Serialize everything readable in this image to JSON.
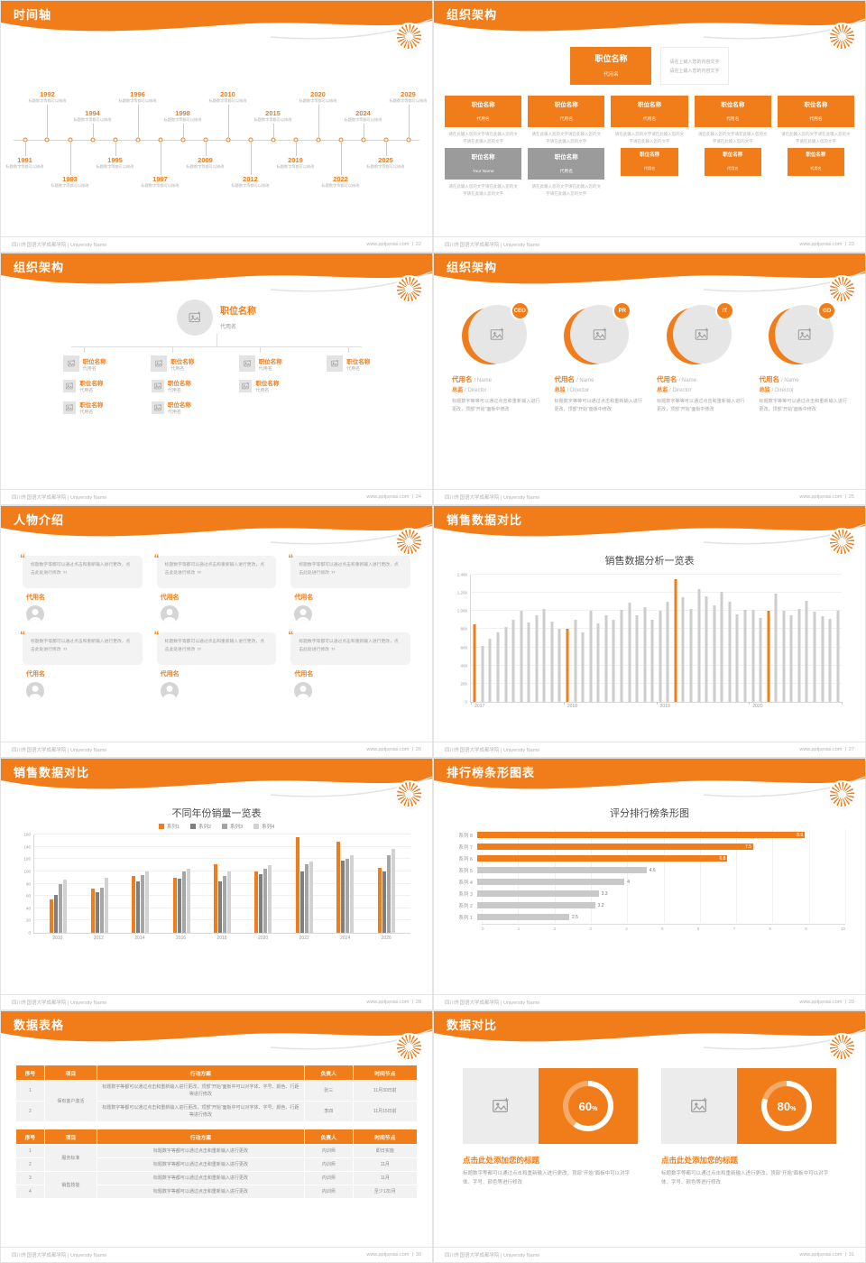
{
  "theme": {
    "orange": "#F07D1A",
    "gray_box": "#9B9B9B",
    "bar_gray": "#CDCDCD",
    "text_gray": "#999999"
  },
  "footer": {
    "left": "四川外国语大学成都学院 | University Name",
    "site": "www.pptjunias.com",
    "sep": "|"
  },
  "slides": {
    "s22": {
      "title": "时间轴",
      "page": "22",
      "item_desc": "标题数字等都可以修改",
      "items": [
        {
          "year": "1991",
          "dir": "down",
          "level": 1
        },
        {
          "year": "1992",
          "dir": "up",
          "level": 2
        },
        {
          "year": "1993",
          "dir": "down",
          "level": 2
        },
        {
          "year": "1994",
          "dir": "up",
          "level": 1
        },
        {
          "year": "1995",
          "dir": "down",
          "level": 1
        },
        {
          "year": "1996",
          "dir": "up",
          "level": 2
        },
        {
          "year": "1997",
          "dir": "down",
          "level": 2
        },
        {
          "year": "1998",
          "dir": "up",
          "level": 1
        },
        {
          "year": "2009",
          "dir": "down",
          "level": 1
        },
        {
          "year": "2010",
          "dir": "up",
          "level": 2
        },
        {
          "year": "2012",
          "dir": "down",
          "level": 2
        },
        {
          "year": "2015",
          "dir": "up",
          "level": 1
        },
        {
          "year": "2019",
          "dir": "down",
          "level": 1
        },
        {
          "year": "2020",
          "dir": "up",
          "level": 2
        },
        {
          "year": "2022",
          "dir": "down",
          "level": 2
        },
        {
          "year": "2024",
          "dir": "up",
          "level": 1
        },
        {
          "year": "2025",
          "dir": "down",
          "level": 1
        },
        {
          "year": "2029",
          "dir": "up",
          "level": 2
        }
      ]
    },
    "s23": {
      "title": "组织架构",
      "page": "23",
      "box_title": "职位名称",
      "box_sub": "代用名",
      "note1": "请在上输入您的内容文字",
      "note2": "请在上输入您的内容文字",
      "body_text": "请在此输入您的文字请在此输入您的文字请在此输入您的文字",
      "columns": [
        {
          "extra": "gray",
          "gray_sub": "Your Name"
        },
        {
          "extra": "gray",
          "gray_sub": "代用名"
        },
        {
          "extra": "small"
        },
        {
          "extra": "small"
        },
        {
          "extra": "small"
        }
      ]
    },
    "s24": {
      "title": "组织架构",
      "page": "24",
      "node_title": "职位名称",
      "node_sub": "代用名",
      "nodes": [
        {
          "children": 2
        },
        {
          "children": 2
        },
        {
          "children": 1
        },
        {
          "children": 0
        }
      ]
    },
    "s25": {
      "title": "组织架构",
      "page": "25",
      "name": "代用名",
      "name_en": "/ Name",
      "role": "总监",
      "role_en": "/ Director",
      "desc": "标题数字等等可以通过点击和重新输入进行更改，顶部“开始”面板中修改",
      "members": [
        {
          "badge": "CEO"
        },
        {
          "badge": "PR"
        },
        {
          "badge": "IT"
        },
        {
          "badge": "GD"
        }
      ]
    },
    "s26": {
      "title": "人物介绍",
      "page": "26",
      "name": "代用名",
      "card_text": "标题数字等都可以通过点击和重新输入进行更改，点击此处进行修改",
      "card_count": 6
    },
    "s27": {
      "title": "销售数据对比",
      "page": "27"
    },
    "s28": {
      "title": "销售数据对比",
      "page": "28"
    },
    "s29": {
      "title": "排行榜条形图表",
      "page": "29"
    },
    "s30": {
      "title": "数据表格",
      "page": "30",
      "tables": [
        {
          "headers": [
            "序号",
            "项目",
            "行动方案",
            "负责人",
            "时间节点"
          ],
          "widths": [
            "7%",
            "13%",
            "52%",
            "12%",
            "16%"
          ],
          "rows": [
            [
              {
                "t": "1"
              },
              {
                "t": "保有客户激活",
                "rs": 2
              },
              {
                "t": "标题数字等都可以通过点击和重新输入进行更改，顶部“开始”面板中可以对字体、字号、颜色、行距等进行修改"
              },
              {
                "t": "张三"
              },
              {
                "t": "11月30日前"
              }
            ],
            [
              {
                "t": "2"
              },
              {
                "t": "标题数字等都可以通过点击和重新输入进行更改，顶部“开始”面板中可以对字体、字号、颜色、行距等进行修改"
              },
              {
                "t": "李四"
              },
              {
                "t": "11月15日前"
              }
            ]
          ]
        },
        {
          "headers": [
            "序号",
            "项目",
            "行动方案",
            "负责人",
            "时间节点"
          ],
          "widths": [
            "7%",
            "13%",
            "52%",
            "12%",
            "16%"
          ],
          "rows": [
            [
              {
                "t": "1"
              },
              {
                "t": "服务标准",
                "rs": 2
              },
              {
                "t": "标题数字等都可以通过点击和重新输入进行更改"
              },
              {
                "t": "内训师"
              },
              {
                "t": "即日实施"
              }
            ],
            [
              {
                "t": "2"
              },
              {
                "t": "标题数字等都可以通过点击和重新输入进行更改"
              },
              {
                "t": "内训师"
              },
              {
                "t": "11月"
              }
            ],
            [
              {
                "t": "3"
              },
              {
                "t": "销售技能",
                "rs": 2
              },
              {
                "t": "标题数字等都可以通过点击和重新输入进行更改"
              },
              {
                "t": "内训师"
              },
              {
                "t": "11月"
              }
            ],
            [
              {
                "t": "4"
              },
              {
                "t": "标题数字等都可以通过点击和重新输入进行更改"
              },
              {
                "t": "内训师"
              },
              {
                "t": "至少1次/月"
              }
            ]
          ]
        }
      ]
    },
    "s31": {
      "title": "数据对比",
      "page": "31",
      "caption": "点击此处添加您的标题",
      "desc": "标题数字等都可以通过点击和重新输入进行更改，顶部“开始”面板中可以对字体、字号、颜色等进行修改"
    }
  },
  "chart_data": [
    {
      "id": "monthly-sales",
      "type": "bar",
      "title": "销售数据分析一览表",
      "x_groups": [
        "2017",
        "2018",
        "2019",
        "2020"
      ],
      "values": [
        850,
        620,
        700,
        760,
        820,
        900,
        1000,
        870,
        950,
        1020,
        880,
        800,
        800,
        900,
        760,
        1000,
        860,
        950,
        900,
        1010,
        1090,
        950,
        1040,
        900,
        1000,
        1100,
        1350,
        1150,
        1020,
        1240,
        1160,
        1060,
        1210,
        1100,
        960,
        1010,
        1010,
        920,
        1000,
        1190,
        1000,
        950,
        1020,
        1110,
        990,
        940,
        910,
        1000
      ],
      "highlight_indices": [
        0,
        12,
        26,
        38
      ],
      "ylim": [
        0,
        1400
      ],
      "yticks": [
        "0",
        "200",
        "400",
        "600",
        "800",
        "1,000",
        "1,200",
        "1,400"
      ],
      "bar_color": "#CDCDCD",
      "highlight_color": "#F07D1A",
      "grid": true,
      "legend": false
    },
    {
      "id": "yearly-sales",
      "type": "bar",
      "title": "不同年份销量一览表",
      "categories": [
        "2010",
        "2012",
        "2014",
        "2016",
        "2018",
        "2020",
        "2022",
        "2024",
        "2026"
      ],
      "series": [
        {
          "name": "系列1",
          "color": "#F07D1A",
          "values": [
            55,
            72,
            92,
            90,
            112,
            100,
            155,
            148,
            105
          ]
        },
        {
          "name": "系列2",
          "color": "#7F7F7F",
          "values": [
            62,
            66,
            84,
            88,
            84,
            96,
            100,
            118,
            100
          ]
        },
        {
          "name": "系列3",
          "color": "#A6A6A6",
          "values": [
            80,
            74,
            94,
            100,
            92,
            104,
            112,
            120,
            126
          ]
        },
        {
          "name": "系列4",
          "color": "#D2D2D2",
          "values": [
            86,
            90,
            100,
            104,
            100,
            110,
            116,
            126,
            136
          ]
        }
      ],
      "ylim": [
        0,
        160
      ],
      "yticks": [
        "0",
        "20",
        "40",
        "60",
        "80",
        "100",
        "120",
        "140",
        "160"
      ],
      "grid": true,
      "legend": "top"
    },
    {
      "id": "score-ranking",
      "type": "hbar",
      "title": "评分排行榜条形图",
      "categories": [
        "系列 8",
        "系列 7",
        "系列 6",
        "系列 5",
        "系列 4",
        "系列 3",
        "系列 2",
        "系列 1"
      ],
      "values": [
        8.9,
        7.5,
        6.8,
        4.6,
        4,
        3.3,
        3.2,
        2.5
      ],
      "value_labels": [
        "8.9",
        "7.5",
        "6.8",
        "4.6",
        "4",
        "3.3",
        "3.2",
        "2.5"
      ],
      "orange_count": 3,
      "xlim": [
        0,
        10
      ],
      "xticks": [
        "0",
        "1",
        "2",
        "3",
        "4",
        "5",
        "6",
        "7",
        "8",
        "9",
        "10"
      ],
      "grid": true,
      "legend": false
    },
    {
      "id": "percent-donuts",
      "type": "donut",
      "values": [
        60,
        80
      ],
      "unit": "%",
      "ring_color": "#FFFFFF",
      "bg": "#F07D1A"
    }
  ]
}
